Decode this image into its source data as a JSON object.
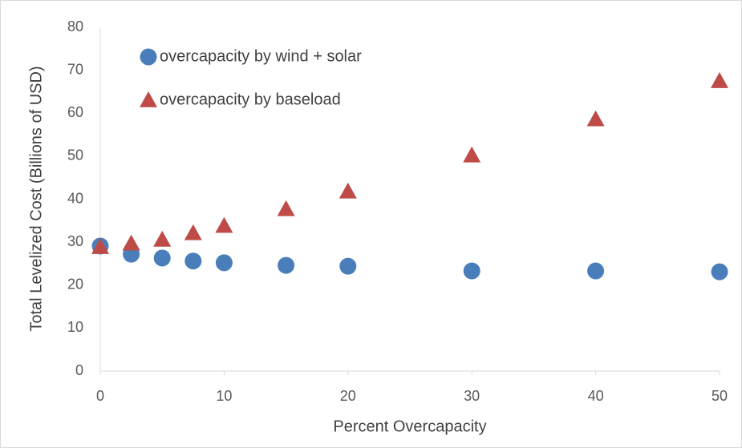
{
  "chart_data": {
    "type": "scatter",
    "x_label": "Percent Overcapacity",
    "y_label": "Total Levelized Cost (Billions of USD)",
    "xlim": [
      0,
      50
    ],
    "xticks": [
      0,
      10,
      20,
      30,
      40,
      50
    ],
    "ylim": [
      0,
      80
    ],
    "yticks": [
      0,
      10,
      20,
      30,
      40,
      50,
      60,
      70,
      80
    ],
    "grid": false,
    "legend": "upper left",
    "series": [
      {
        "name": "overcapacity by wind + solar",
        "color": "#4a7ebb",
        "marker": "circle",
        "x": [
          0,
          2.5,
          5,
          7.5,
          10,
          15,
          20,
          30,
          40,
          50
        ],
        "values": [
          29.1,
          27.2,
          26.3,
          25.6,
          25.2,
          24.6,
          24.4,
          23.3,
          23.3,
          23.1
        ]
      },
      {
        "name": "overcapacity by baseload",
        "color": "#be4b48",
        "marker": "triangle",
        "x": [
          0,
          2.5,
          5,
          7.5,
          10,
          15,
          20,
          30,
          40,
          50
        ],
        "values": [
          28.9,
          29.7,
          30.6,
          32.1,
          33.8,
          37.7,
          41.8,
          50.2,
          58.6,
          67.5
        ]
      }
    ]
  }
}
